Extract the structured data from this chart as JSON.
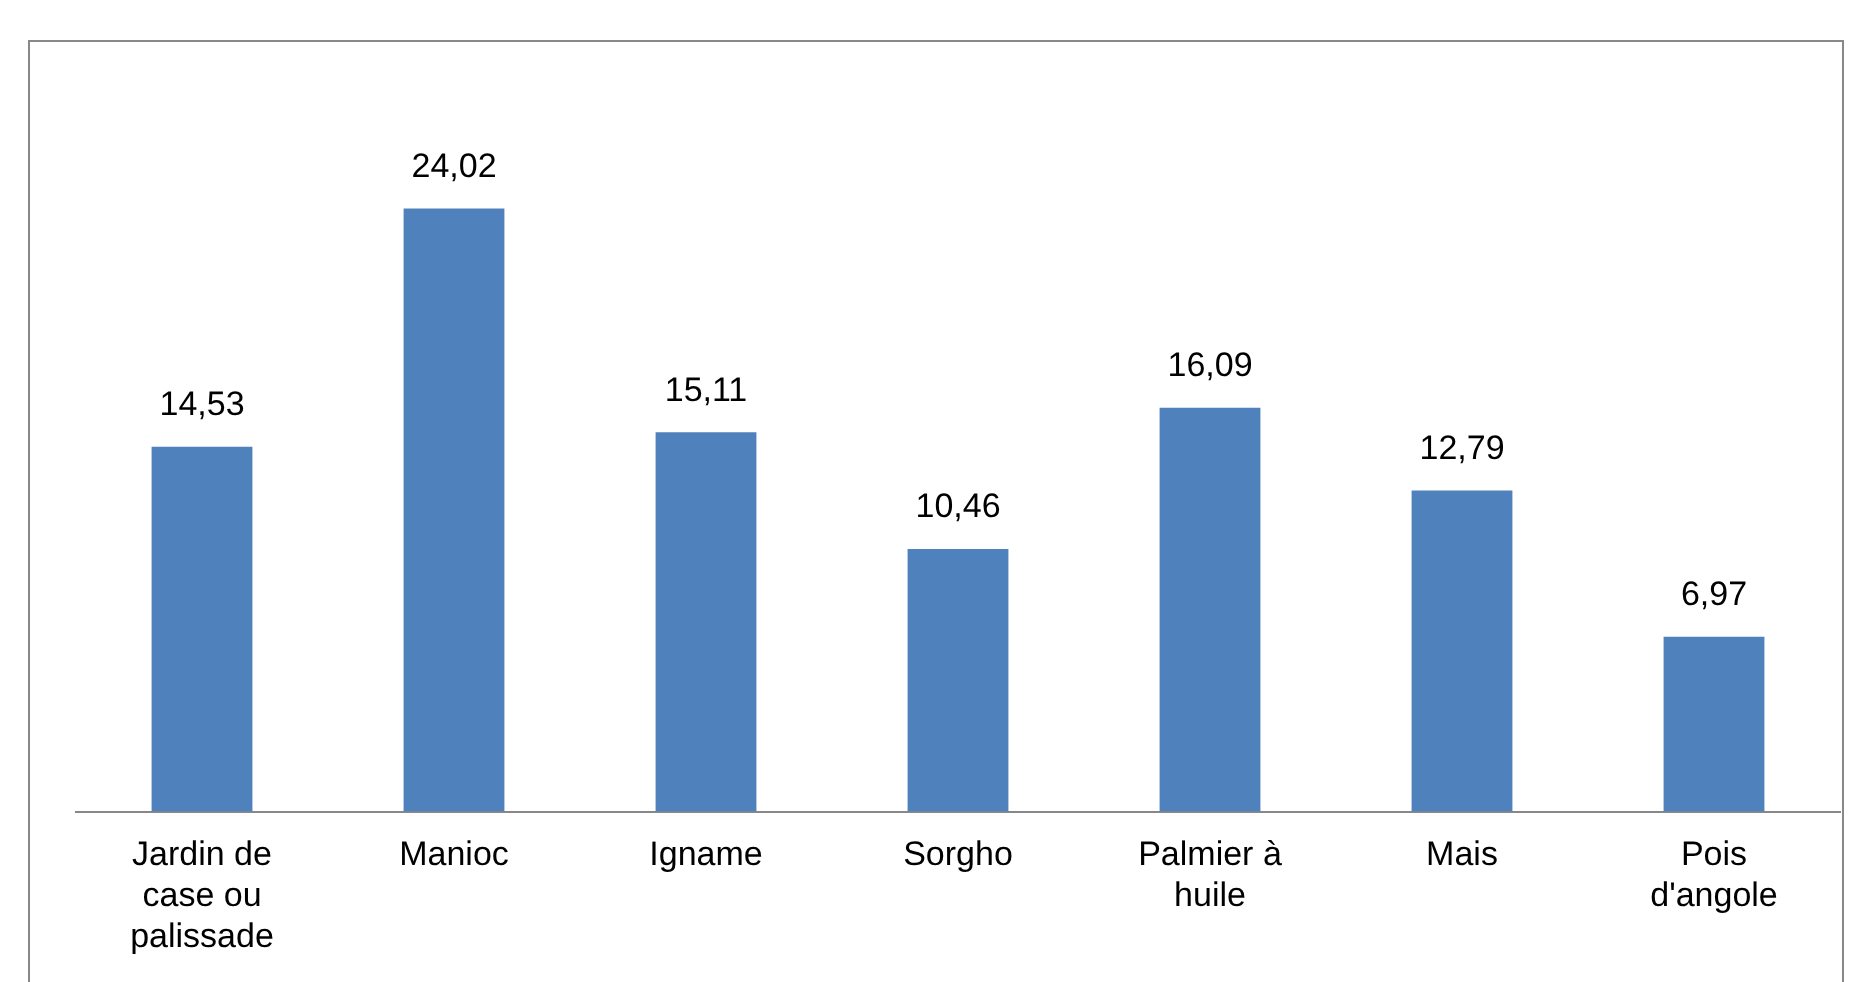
{
  "chart_data": {
    "type": "bar",
    "categories": [
      "Jardin de case ou palissade",
      "Manioc",
      "Igname",
      "Sorgho",
      "Palmier à huile",
      "Mais",
      "Pois d'angole"
    ],
    "values": [
      14.53,
      24.02,
      15.11,
      10.46,
      16.09,
      12.79,
      6.97
    ],
    "value_labels": [
      "14,53",
      "24,02",
      "15,11",
      "10,46",
      "16,09",
      "12,79",
      "6,97"
    ],
    "color": "#4f81bd",
    "grid": false,
    "legend": false
  }
}
